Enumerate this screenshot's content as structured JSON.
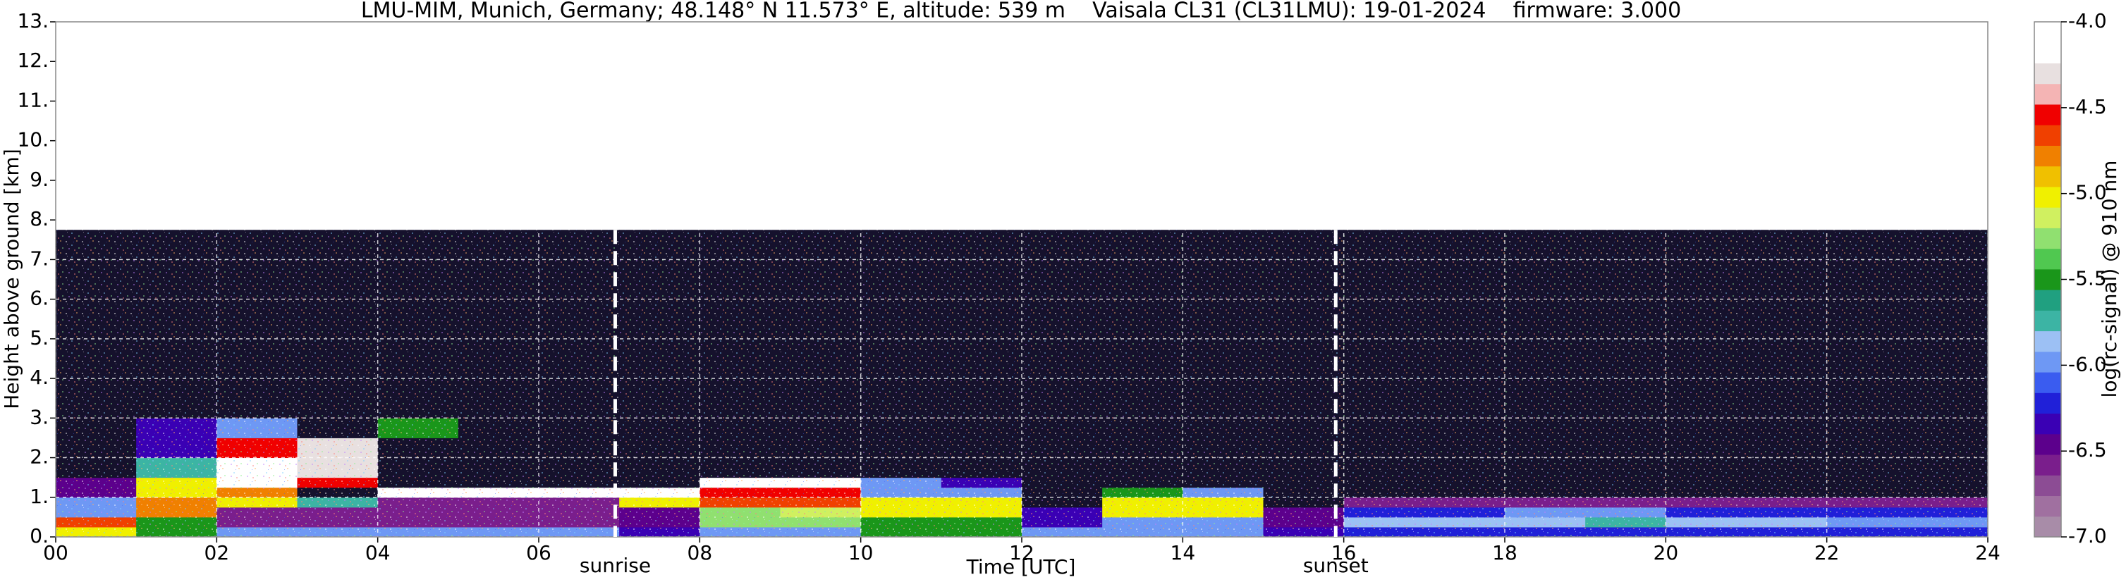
{
  "chart_data": {
    "type": "heatmap",
    "title": "LMU-MIM, Munich, Germany; 48.148° N 11.573° E, altitude: 539 m    Vaisala CL31 (CL31LMU): 19-01-2024    firmware: 3.000",
    "x_label": "Time [UTC]",
    "y_label": "Height above ground [km]",
    "xlim": [
      0,
      24
    ],
    "ylim": [
      0,
      13
    ],
    "xticks": [
      {
        "value": 0,
        "label": "00"
      },
      {
        "value": 2,
        "label": "02"
      },
      {
        "value": 4,
        "label": "04"
      },
      {
        "value": 6,
        "label": "06"
      },
      {
        "value": 8,
        "label": "08"
      },
      {
        "value": 10,
        "label": "10"
      },
      {
        "value": 12,
        "label": "12"
      },
      {
        "value": 14,
        "label": "14"
      },
      {
        "value": 16,
        "label": "16"
      },
      {
        "value": 18,
        "label": "18"
      },
      {
        "value": 20,
        "label": "20"
      },
      {
        "value": 22,
        "label": "22"
      },
      {
        "value": 24,
        "label": "24"
      }
    ],
    "yticks": [
      {
        "value": 0,
        "label": "0."
      },
      {
        "value": 1,
        "label": "1."
      },
      {
        "value": 2,
        "label": "2."
      },
      {
        "value": 3,
        "label": "3."
      },
      {
        "value": 4,
        "label": "4."
      },
      {
        "value": 5,
        "label": "5."
      },
      {
        "value": 6,
        "label": "6."
      },
      {
        "value": 7,
        "label": "7."
      },
      {
        "value": 8,
        "label": "8."
      },
      {
        "value": 9,
        "label": "9."
      },
      {
        "value": 10,
        "label": "10."
      },
      {
        "value": 11,
        "label": "11."
      },
      {
        "value": 12,
        "label": "12."
      },
      {
        "value": 13,
        "label": "13."
      }
    ],
    "grid": true,
    "x_edges": [
      0,
      1,
      2,
      3,
      4,
      5,
      6,
      7,
      8,
      9,
      10,
      11,
      12,
      13,
      14,
      15,
      16,
      17,
      18,
      19,
      20,
      21,
      22,
      23,
      24
    ],
    "y_edges": [
      0,
      0.25,
      0.5,
      0.75,
      1,
      1.25,
      1.5,
      2,
      2.5,
      3,
      7.75
    ],
    "z": [
      [
        -5.0,
        -5.5,
        -6.0,
        -6.0,
        -6.0,
        -6.0,
        -6.0,
        -6.3,
        -6.0,
        -6.0,
        -5.5,
        -5.5,
        -6.0,
        -6.0,
        -6.0,
        -6.3,
        -6.2,
        -6.2,
        -6.2,
        -6.2,
        -6.2,
        -6.2,
        -6.2,
        -6.2
      ],
      [
        -4.7,
        -5.5,
        -6.6,
        -6.6,
        -6.6,
        -6.6,
        -6.6,
        -6.5,
        -5.3,
        -5.3,
        -5.5,
        -5.5,
        -6.3,
        -6.0,
        -6.0,
        -6.5,
        -5.9,
        -5.9,
        -5.9,
        -5.8,
        -5.9,
        -5.9,
        -6.0,
        -6.0
      ],
      [
        -6.0,
        -4.8,
        -6.6,
        -6.6,
        -6.6,
        -6.6,
        -6.6,
        -6.5,
        -5.3,
        -5.2,
        -5.0,
        -5.0,
        -6.3,
        -5.0,
        -5.0,
        -6.5,
        -6.2,
        -6.2,
        -6.0,
        -6.0,
        -6.2,
        -6.2,
        -6.2,
        -6.2
      ],
      [
        -6.0,
        -4.8,
        -5.0,
        -5.8,
        -6.6,
        -6.6,
        -6.6,
        -5.0,
        -4.7,
        -4.7,
        -5.0,
        -5.0,
        -7.5,
        -5.0,
        -5.0,
        -7.5,
        -6.6,
        -6.6,
        -6.6,
        -6.6,
        -6.6,
        -6.6,
        -6.6,
        -6.6
      ],
      [
        -6.5,
        -5.0,
        -4.8,
        -7.5,
        -4.2,
        -4.2,
        -4.2,
        -4.2,
        -4.6,
        -4.6,
        -6.0,
        -6.0,
        -7.5,
        -5.5,
        -6.0,
        -7.5,
        -7.5,
        -7.5,
        -7.5,
        -7.5,
        -7.5,
        -7.5,
        -7.5,
        -7.5
      ],
      [
        -6.5,
        -5.0,
        -4.2,
        -4.6,
        -7.5,
        -7.5,
        -7.5,
        -7.5,
        -4.2,
        -4.2,
        -6.0,
        -6.3,
        -7.5,
        -7.5,
        -7.5,
        -7.5,
        -7.5,
        -7.5,
        -7.5,
        -7.5,
        -7.5,
        -7.5,
        -7.5,
        -7.5
      ],
      [
        -7.5,
        -5.8,
        -4.2,
        -4.3,
        -7.5,
        -7.5,
        -7.5,
        -7.5,
        -7.5,
        -7.5,
        -7.5,
        -7.5,
        -7.5,
        -7.5,
        -7.5,
        -7.5,
        -7.5,
        -7.5,
        -7.5,
        -7.5,
        -7.5,
        -7.5,
        -7.5,
        -7.5
      ],
      [
        -7.5,
        -6.3,
        -4.6,
        -4.3,
        -7.5,
        -7.5,
        -7.5,
        -7.5,
        -7.5,
        -7.5,
        -7.5,
        -7.5,
        -7.5,
        -7.5,
        -7.5,
        -7.5,
        -7.5,
        -7.5,
        -7.5,
        -7.5,
        -7.5,
        -7.5,
        -7.5,
        -7.5
      ],
      [
        -7.5,
        -6.3,
        -6.0,
        -7.5,
        -5.5,
        -7.5,
        -7.5,
        -7.5,
        -7.5,
        -7.5,
        -7.5,
        -7.5,
        -7.5,
        -7.5,
        -7.5,
        -7.5,
        -7.5,
        -7.5,
        -7.5,
        -7.5,
        -7.5,
        -7.5,
        -7.5,
        -7.5
      ],
      [
        -7.5,
        -7.5,
        -7.5,
        -7.5,
        -7.5,
        -7.5,
        -7.5,
        -7.5,
        -7.5,
        -7.5,
        -7.5,
        -7.5,
        -7.5,
        -7.5,
        -7.5,
        -7.5,
        -7.5,
        -7.5,
        -7.5,
        -7.5,
        -7.5,
        -7.5,
        -7.5,
        -7.5
      ]
    ],
    "annotations": [
      {
        "label": "sunrise",
        "x": 6.95
      },
      {
        "label": "sunset",
        "x": 15.9
      }
    ],
    "colorbar": {
      "label": "log(rc-signal) @ 910 nm",
      "lim": [
        -7.0,
        -4.0
      ],
      "ticks": [
        {
          "value": -7.0,
          "label": "-7.0"
        },
        {
          "value": -6.5,
          "label": "-6.5"
        },
        {
          "value": -6.0,
          "label": "-6.0"
        },
        {
          "value": -5.5,
          "label": "-5.5"
        },
        {
          "value": -5.0,
          "label": "-5.0"
        },
        {
          "value": -4.5,
          "label": "-4.5"
        },
        {
          "value": -4.0,
          "label": "-4.0"
        }
      ],
      "colors": [
        "#a88ca8",
        "#a070a0",
        "#8c4c94",
        "#7a1e8c",
        "#5c008c",
        "#3a00b4",
        "#2020d8",
        "#3a5cf0",
        "#6e98f4",
        "#9cc0f4",
        "#3cb4a4",
        "#20a080",
        "#1a961a",
        "#50c850",
        "#90e070",
        "#d0f060",
        "#f0f000",
        "#f0c000",
        "#f08000",
        "#f04000",
        "#f00000",
        "#f4b4b4",
        "#e8e0e0",
        "#ffffff",
        "#ffffff"
      ],
      "under_color": "#15112c"
    }
  }
}
